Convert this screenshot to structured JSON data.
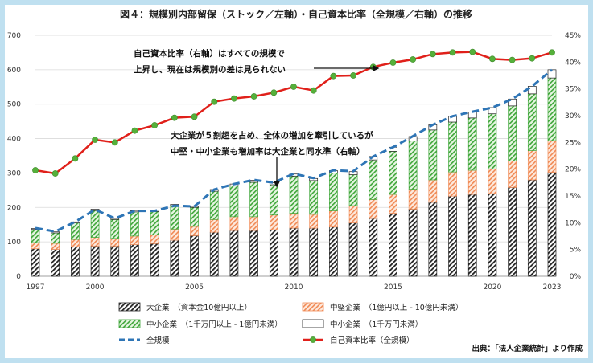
{
  "chart_data": {
    "type": "bar",
    "title": "図４：規模別内部留保（ストック／左軸）・自己資本比率（全規模／右軸）の推移",
    "x_ticks": [
      "1997",
      "2000",
      "2005",
      "2010",
      "2015",
      "2020",
      "2023"
    ],
    "years": [
      1997,
      1998,
      1999,
      2000,
      2001,
      2002,
      2003,
      2004,
      2005,
      2006,
      2007,
      2008,
      2009,
      2010,
      2011,
      2012,
      2013,
      2014,
      2015,
      2016,
      2017,
      2018,
      2019,
      2020,
      2021,
      2022,
      2023
    ],
    "ylim_left": [
      0,
      700
    ],
    "yticks_left": [
      "0",
      "100",
      "200",
      "300",
      "400",
      "500",
      "600",
      "700"
    ],
    "ylim_right": [
      0,
      45
    ],
    "yticks_right": [
      "0%",
      "5%",
      "10%",
      "15%",
      "20%",
      "25%",
      "30%",
      "35%",
      "40%",
      "45%"
    ],
    "grid": true,
    "legend_position": "bottom",
    "series": [
      {
        "name": "大企業　（資本金10億円以上）",
        "kind": "bar",
        "color": "#333333",
        "pattern": "hatch-black",
        "values": [
          80,
          78,
          85,
          88,
          88,
          92,
          95,
          105,
          118,
          128,
          133,
          133,
          135,
          140,
          140,
          143,
          155,
          168,
          183,
          195,
          215,
          233,
          238,
          240,
          258,
          280,
          302
        ]
      },
      {
        "name": "中堅企業　（1億円以上 - 10億円未満）",
        "kind": "bar",
        "color": "#f4a582",
        "pattern": "hatch-orange",
        "values": [
          18,
          18,
          22,
          25,
          22,
          25,
          25,
          32,
          27,
          37,
          40,
          40,
          43,
          43,
          40,
          47,
          50,
          55,
          55,
          58,
          65,
          70,
          70,
          72,
          77,
          85,
          92
        ]
      },
      {
        "name": "中小企業　（1千万円以上 - 1億円未満）",
        "kind": "bar",
        "color": "#4caf50",
        "pattern": "hatch-green",
        "values": [
          38,
          30,
          48,
          78,
          55,
          70,
          68,
          68,
          55,
          82,
          90,
          100,
          88,
          108,
          98,
          110,
          90,
          115,
          125,
          140,
          145,
          145,
          152,
          160,
          160,
          165,
          182
        ]
      },
      {
        "name": "中小企業　（1千万円未満）",
        "kind": "bar",
        "color": "#ffffff",
        "pattern": "white",
        "values": [
          3,
          3,
          3,
          4,
          3,
          4,
          4,
          4,
          3,
          5,
          5,
          6,
          6,
          6,
          6,
          7,
          9,
          10,
          12,
          13,
          15,
          17,
          17,
          18,
          20,
          22,
          24
        ]
      },
      {
        "name": "全規模",
        "kind": "line",
        "axis": "left",
        "color": "#2e75b6",
        "values": [
          140,
          130,
          158,
          194,
          168,
          190,
          190,
          205,
          203,
          252,
          268,
          280,
          272,
          298,
          285,
          308,
          305,
          348,
          375,
          407,
          440,
          465,
          478,
          490,
          515,
          552,
          600
        ]
      },
      {
        "name": "自己資本比率（全規模）",
        "kind": "line",
        "axis": "right",
        "color": "#e0201a",
        "marker": "#55b03a",
        "values": [
          19.8,
          19.2,
          22.0,
          25.5,
          25.0,
          27.2,
          28.2,
          29.6,
          29.8,
          32.6,
          33.2,
          33.6,
          34.3,
          35.4,
          34.7,
          37.4,
          37.5,
          39.1,
          39.9,
          40.5,
          41.5,
          41.8,
          41.9,
          40.6,
          40.4,
          40.7,
          41.8
        ]
      }
    ],
    "annotations": [
      {
        "id": "a1",
        "lines": [
          "自己資本比率（右軸）はすべての規模で",
          "上昇し、現在は規模別の差は見られない"
        ]
      },
      {
        "id": "a2",
        "lines": [
          "大企業が５割超を占め、全体の増加を牽引しているが",
          "中堅・中小企業も増加率は大企業と同水準（右軸）"
        ]
      }
    ],
    "source": "出典：「法人企業統計」より作成"
  }
}
